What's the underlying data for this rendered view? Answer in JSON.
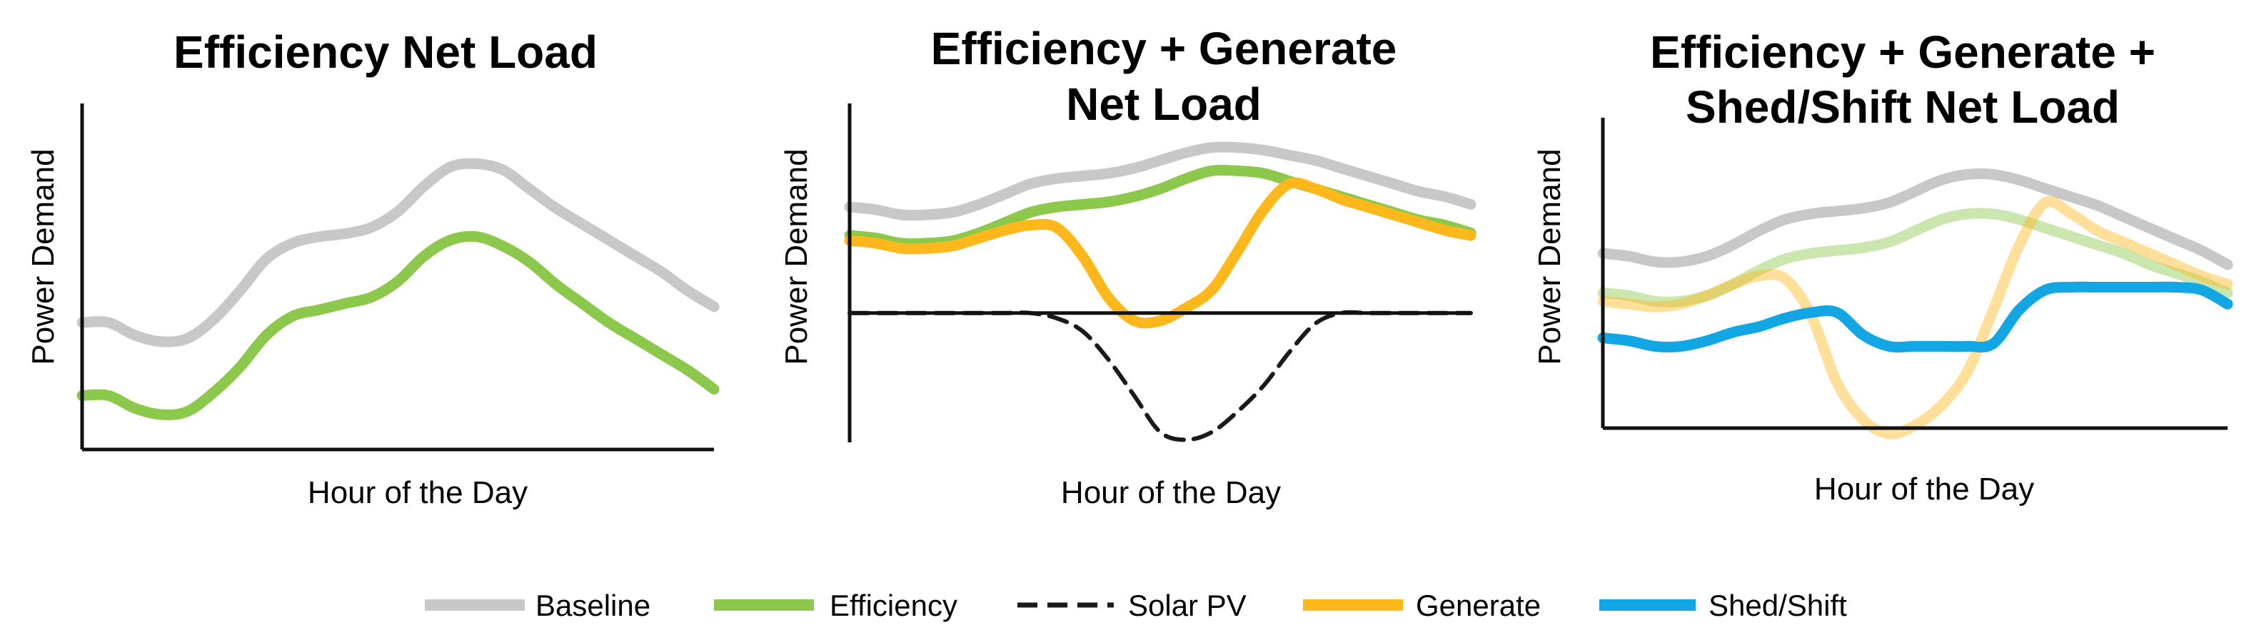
{
  "charts": [
    {
      "title_lines": [
        "Efficiency Net Load"
      ],
      "ylabel": "Power Demand",
      "xlabel": "Hour of the Day"
    },
    {
      "title_lines": [
        "Efficiency + Generate",
        "Net Load"
      ],
      "ylabel": "Power Demand",
      "xlabel": "Hour of the Day"
    },
    {
      "title_lines": [
        "Efficiency + Generate +",
        "Shed/Shift Net Load"
      ],
      "ylabel": "Power Demand",
      "xlabel": "Hour of the Day"
    }
  ],
  "legend": [
    {
      "name": "Baseline",
      "color": "#c8c8c8",
      "style": "solid"
    },
    {
      "name": "Efficiency",
      "color": "#8cc84b",
      "style": "solid"
    },
    {
      "name": "Solar PV",
      "color": "#1a1a1a",
      "style": "dashed"
    },
    {
      "name": "Generate",
      "color": "#ffb81c",
      "style": "solid"
    },
    {
      "name": "Shed/Shift",
      "color": "#12a6e4",
      "style": "solid"
    }
  ],
  "chart_data": [
    {
      "type": "line",
      "title": "Efficiency Net Load",
      "xlabel": "Hour of the Day",
      "ylabel": "Power Demand",
      "x": [
        0,
        1,
        2,
        3,
        4,
        5,
        6,
        7,
        8,
        9,
        10,
        11,
        12,
        13,
        14,
        15,
        16,
        17,
        18,
        19,
        20,
        21,
        22,
        23,
        24
      ],
      "xlim": [
        0,
        24
      ],
      "ylim": [
        0,
        10
      ],
      "grid": false,
      "series": [
        {
          "name": "Baseline",
          "color": "#c8c8c8",
          "values": [
            4.0,
            4.0,
            3.6,
            3.4,
            3.5,
            4.1,
            5.0,
            6.0,
            6.5,
            6.7,
            6.8,
            7.0,
            7.5,
            8.3,
            8.9,
            9.0,
            8.8,
            8.2,
            7.6,
            7.1,
            6.6,
            6.1,
            5.6,
            5.0,
            4.5
          ]
        },
        {
          "name": "Efficiency",
          "color": "#8cc84b",
          "values": [
            1.7,
            1.7,
            1.3,
            1.1,
            1.2,
            1.8,
            2.6,
            3.6,
            4.2,
            4.4,
            4.6,
            4.8,
            5.3,
            6.1,
            6.6,
            6.7,
            6.4,
            5.9,
            5.2,
            4.6,
            4.0,
            3.5,
            3.0,
            2.5,
            1.9
          ]
        }
      ]
    },
    {
      "type": "line",
      "title": "Efficiency + Generate Net Load",
      "xlabel": "Hour of the Day",
      "ylabel": "Power Demand",
      "x": [
        0,
        1,
        2,
        3,
        4,
        5,
        6,
        7,
        8,
        9,
        10,
        11,
        12,
        13,
        14,
        15,
        16,
        17,
        18,
        19,
        20,
        21,
        22,
        23,
        24
      ],
      "xlim": [
        0,
        24
      ],
      "ylim": [
        -5,
        7
      ],
      "grid": false,
      "series": [
        {
          "name": "Baseline",
          "color": "#c8c8c8",
          "values": [
            4.1,
            4.0,
            3.8,
            3.8,
            3.9,
            4.2,
            4.6,
            5.0,
            5.2,
            5.3,
            5.4,
            5.6,
            5.9,
            6.2,
            6.4,
            6.4,
            6.3,
            6.1,
            5.9,
            5.6,
            5.3,
            5.0,
            4.7,
            4.5,
            4.2
          ]
        },
        {
          "name": "Efficiency",
          "color": "#8cc84b",
          "values": [
            3.0,
            2.9,
            2.7,
            2.7,
            2.8,
            3.1,
            3.5,
            3.9,
            4.1,
            4.2,
            4.3,
            4.5,
            4.8,
            5.2,
            5.5,
            5.5,
            5.4,
            5.1,
            4.8,
            4.5,
            4.2,
            3.9,
            3.6,
            3.4,
            3.1
          ]
        },
        {
          "name": "Generate",
          "color": "#ffb81c",
          "values": [
            2.8,
            2.7,
            2.5,
            2.5,
            2.6,
            2.9,
            3.2,
            3.4,
            3.3,
            2.2,
            0.6,
            -0.3,
            -0.3,
            0.2,
            0.9,
            2.4,
            4.0,
            5.0,
            4.8,
            4.4,
            4.1,
            3.8,
            3.5,
            3.2,
            3.0
          ]
        },
        {
          "name": "Solar PV",
          "color": "#1a1a1a",
          "dashed": true,
          "values": [
            0,
            0,
            0,
            0,
            0,
            0,
            0,
            0,
            -0.2,
            -0.7,
            -1.8,
            -3.2,
            -4.6,
            -4.9,
            -4.6,
            -3.8,
            -2.8,
            -1.5,
            -0.4,
            0,
            0,
            0,
            0,
            0,
            0
          ]
        }
      ]
    },
    {
      "type": "line",
      "title": "Efficiency + Generate + Shed/Shift Net Load",
      "xlabel": "Hour of the Day",
      "ylabel": "Power Demand",
      "x": [
        0,
        1,
        2,
        3,
        4,
        5,
        6,
        7,
        8,
        9,
        10,
        11,
        12,
        13,
        14,
        15,
        16,
        17,
        18,
        19,
        20,
        21,
        22,
        23,
        24
      ],
      "xlim": [
        0,
        24
      ],
      "ylim": [
        0,
        10
      ],
      "grid": false,
      "series": [
        {
          "name": "Baseline",
          "color": "#c8c8c8",
          "values": [
            6.2,
            6.1,
            5.9,
            5.9,
            6.1,
            6.5,
            7.0,
            7.4,
            7.6,
            7.7,
            7.8,
            8.0,
            8.4,
            8.8,
            9.0,
            9.0,
            8.8,
            8.5,
            8.2,
            7.9,
            7.5,
            7.1,
            6.7,
            6.3,
            5.8
          ]
        },
        {
          "name": "Efficiency",
          "color": "#8cc84b",
          "faded": true,
          "values": [
            4.8,
            4.7,
            4.5,
            4.5,
            4.7,
            5.1,
            5.6,
            6.0,
            6.2,
            6.3,
            6.4,
            6.6,
            7.0,
            7.4,
            7.6,
            7.6,
            7.4,
            7.1,
            6.8,
            6.5,
            6.2,
            5.8,
            5.5,
            5.2,
            4.8
          ]
        },
        {
          "name": "Generate",
          "color": "#ffb81c",
          "faded": true,
          "values": [
            4.5,
            4.4,
            4.3,
            4.4,
            4.7,
            5.1,
            5.4,
            5.3,
            4.0,
            1.6,
            0.3,
            -0.2,
            0.1,
            0.8,
            2.0,
            4.2,
            6.5,
            8.0,
            7.6,
            7.0,
            6.6,
            6.2,
            5.8,
            5.4,
            5.1
          ]
        },
        {
          "name": "Shed/Shift",
          "color": "#12a6e4",
          "values": [
            3.2,
            3.1,
            2.9,
            2.9,
            3.1,
            3.4,
            3.6,
            3.9,
            4.1,
            4.1,
            3.3,
            2.9,
            2.9,
            2.9,
            2.9,
            3.0,
            4.2,
            4.9,
            5.0,
            5.0,
            5.0,
            5.0,
            5.0,
            4.9,
            4.4
          ]
        }
      ]
    }
  ]
}
